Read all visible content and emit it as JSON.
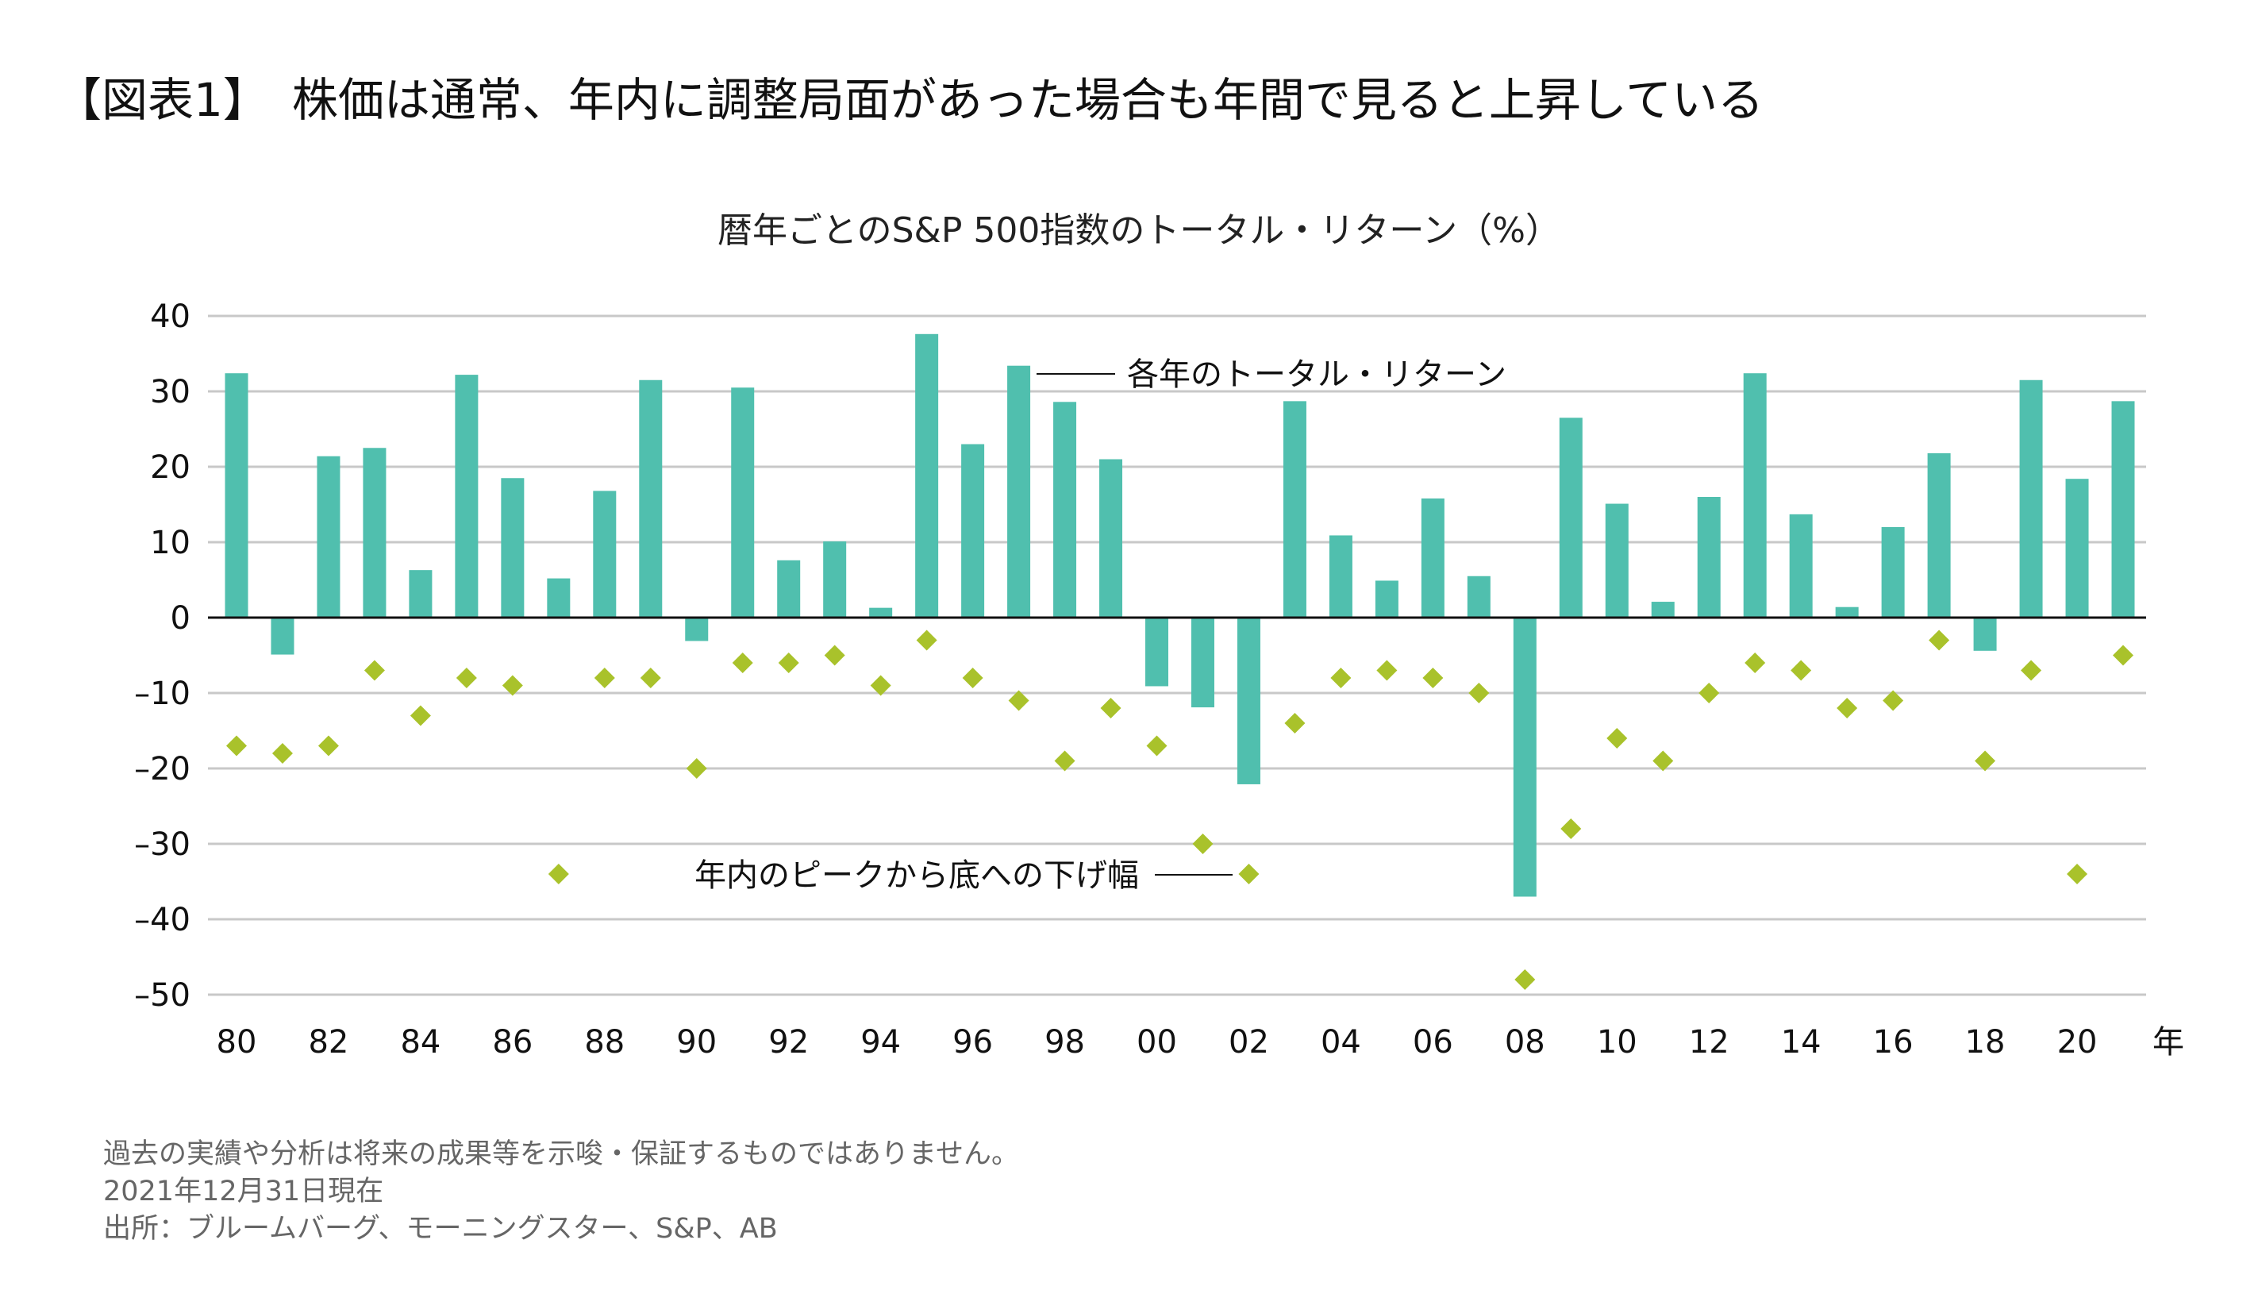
{
  "title": "【図表1】　株価は通常、年内に調整局面があった場合も年間で見ると上昇している",
  "footnotes": [
    "過去の実績や分析は将来の成果等を示唆・保証するものではありません。",
    "2021年12月31日現在",
    "出所：ブルームバーグ、モーニングスター、S&P、AB"
  ],
  "chart_data": {
    "type": "bar",
    "title": "暦年ごとのS&P 500指数のトータル・リターン（%）",
    "xlabel": "年",
    "ylabel": "",
    "ylim": [
      -50,
      40
    ],
    "yticks": [
      40,
      30,
      20,
      10,
      0,
      -10,
      -20,
      -30,
      -40,
      -50
    ],
    "ytick_labels": [
      "40",
      "30",
      "20",
      "10",
      "0",
      "–10",
      "–20",
      "–30",
      "–40",
      "–50"
    ],
    "xtick_labels": [
      "80",
      "82",
      "84",
      "86",
      "88",
      "90",
      "92",
      "94",
      "96",
      "98",
      "00",
      "02",
      "04",
      "06",
      "08",
      "10",
      "12",
      "14",
      "16",
      "18",
      "20"
    ],
    "grid": true,
    "categories": [
      "80",
      "81",
      "82",
      "83",
      "84",
      "85",
      "86",
      "87",
      "88",
      "89",
      "90",
      "91",
      "92",
      "93",
      "94",
      "95",
      "96",
      "97",
      "98",
      "99",
      "00",
      "01",
      "02",
      "03",
      "04",
      "05",
      "06",
      "07",
      "08",
      "09",
      "10",
      "11",
      "12",
      "13",
      "14",
      "15",
      "16",
      "17",
      "18",
      "19",
      "20",
      "21"
    ],
    "series": [
      {
        "name": "各年のトータル・リターン",
        "type": "bar",
        "color": "#50bfae",
        "values": [
          32.4,
          -4.9,
          21.4,
          22.5,
          6.3,
          32.2,
          18.5,
          5.2,
          16.8,
          31.5,
          -3.1,
          30.5,
          7.6,
          10.1,
          1.3,
          37.6,
          23.0,
          33.4,
          28.6,
          21.0,
          -9.1,
          -11.9,
          -22.1,
          28.7,
          10.9,
          4.9,
          15.8,
          5.5,
          -37.0,
          26.5,
          15.1,
          2.1,
          16.0,
          32.4,
          13.7,
          1.4,
          12.0,
          21.8,
          -4.4,
          31.5,
          18.4,
          28.7
        ]
      },
      {
        "name": "年内のピークから底への下げ幅",
        "type": "scatter",
        "marker": "diamond",
        "color": "#a9c22b",
        "values": [
          -17,
          -18,
          -17,
          -7,
          -13,
          -8,
          -9,
          -34,
          -8,
          -8,
          -20,
          -6,
          -6,
          -5,
          -9,
          -3,
          -8,
          -11,
          -19,
          -12,
          -17,
          -30,
          -34,
          -14,
          -8,
          -7,
          -8,
          -10,
          -48,
          -28,
          -16,
          -19,
          -10,
          -6,
          -7,
          -12,
          -11,
          -3,
          -19,
          -7,
          -34,
          -5
        ]
      }
    ]
  }
}
